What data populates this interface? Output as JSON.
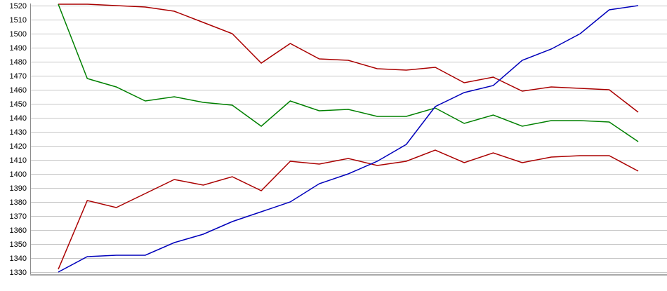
{
  "chart_data": {
    "type": "line",
    "title": "",
    "xlabel": "",
    "ylabel": "",
    "ylim": [
      1330,
      1520
    ],
    "y_tick_step": 10,
    "y_tick_labels": [
      "1520",
      "1510",
      "1500",
      "1490",
      "1480",
      "1470",
      "1460",
      "1450",
      "1440",
      "1430",
      "1420",
      "1410",
      "1400",
      "1390",
      "1380",
      "1370",
      "1360",
      "1350",
      "1340",
      "1330"
    ],
    "x_tick_labels": [],
    "point_count": 21,
    "grid": true,
    "legend": "none",
    "colors": {
      "grid_line": "#c6c6c6",
      "y_axis_line": "#8c8c8c",
      "x_axis_border": "#a9a9a9",
      "background": "#ffffff",
      "label_text": "#000000"
    },
    "series": [
      {
        "name": "upper-red",
        "color": "#aa0000",
        "values": [
          1521,
          1521,
          1520,
          1519,
          1516,
          1508,
          1500,
          1479,
          1493,
          1482,
          1481,
          1475,
          1474,
          1476,
          1465,
          1469,
          1459,
          1462,
          1461,
          1460,
          1444
        ]
      },
      {
        "name": "green",
        "color": "#008000",
        "values": [
          1521,
          1468,
          1462,
          1452,
          1455,
          1451,
          1449,
          1434,
          1452,
          1445,
          1446,
          1441,
          1441,
          1447,
          1436,
          1442,
          1434,
          1438,
          1438,
          1437,
          1423
        ]
      },
      {
        "name": "lower-red",
        "color": "#aa0000",
        "values": [
          1332,
          1381,
          1376,
          1386,
          1396,
          1392,
          1398,
          1388,
          1409,
          1407,
          1411,
          1406,
          1409,
          1417,
          1408,
          1415,
          1408,
          1412,
          1413,
          1413,
          1402
        ]
      },
      {
        "name": "blue",
        "color": "#0000bb",
        "values": [
          1330,
          1341,
          1342,
          1342,
          1351,
          1357,
          1366,
          1373,
          1380,
          1393,
          1400,
          1409,
          1421,
          1448,
          1458,
          1463,
          1481,
          1489,
          1500,
          1517,
          1520
        ]
      }
    ]
  }
}
